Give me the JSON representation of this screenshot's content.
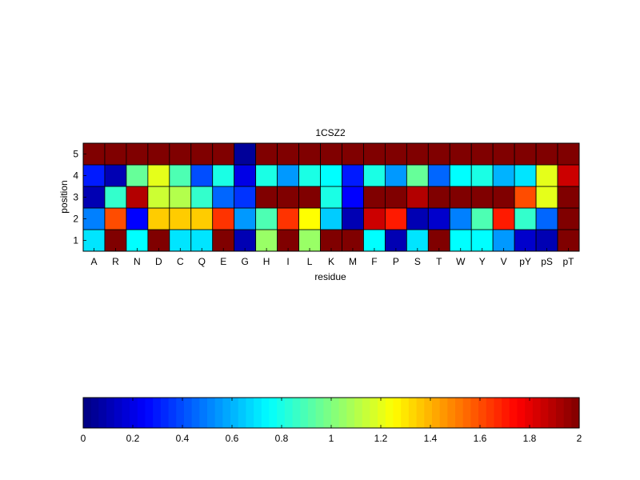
{
  "chart_data": {
    "type": "heatmap",
    "title": "1CSZ2",
    "xlabel": "residue",
    "ylabel": "position",
    "x_categories": [
      "A",
      "R",
      "N",
      "D",
      "C",
      "Q",
      "E",
      "G",
      "H",
      "I",
      "L",
      "K",
      "M",
      "F",
      "P",
      "S",
      "T",
      "W",
      "Y",
      "V",
      "pY",
      "pS",
      "pT"
    ],
    "y_categories": [
      "1",
      "2",
      "3",
      "4",
      "5"
    ],
    "values": [
      [
        0.7,
        2.0,
        0.75,
        2.0,
        0.7,
        0.7,
        2.0,
        0.1,
        1.05,
        2.0,
        1.05,
        2.0,
        2.0,
        0.75,
        0.1,
        0.7,
        2.0,
        0.75,
        0.75,
        0.55,
        0.15,
        0.1,
        2.0
      ],
      [
        0.5,
        1.6,
        0.25,
        1.35,
        1.35,
        1.35,
        1.65,
        0.55,
        0.9,
        1.65,
        1.25,
        0.65,
        0.1,
        1.85,
        1.7,
        0.1,
        0.15,
        0.5,
        0.9,
        1.7,
        0.85,
        0.45,
        2.0
      ],
      [
        0.1,
        0.85,
        1.9,
        1.15,
        1.1,
        0.85,
        0.45,
        0.35,
        2.0,
        2.0,
        2.0,
        0.8,
        0.25,
        2.0,
        2.0,
        1.9,
        2.0,
        2.0,
        2.0,
        2.0,
        1.6,
        1.2,
        2.0
      ],
      [
        0.3,
        0.1,
        0.95,
        1.2,
        0.9,
        0.4,
        0.8,
        0.2,
        0.8,
        0.55,
        0.8,
        0.75,
        0.3,
        0.8,
        0.55,
        0.95,
        0.45,
        0.75,
        0.8,
        0.6,
        0.7,
        1.2,
        1.85
      ],
      [
        2.0,
        2.0,
        2.0,
        2.0,
        2.0,
        2.0,
        2.0,
        0.05,
        2.0,
        2.0,
        2.0,
        2.0,
        2.0,
        2.0,
        2.0,
        2.0,
        2.0,
        2.0,
        2.0,
        2.0,
        2.0,
        2.0,
        2.0
      ]
    ],
    "colormap": "jet",
    "color_range": [
      0,
      2
    ],
    "colorbar": {
      "placement": "bottom",
      "ticks": [
        "0",
        "0.2",
        "0.4",
        "0.6",
        "0.8",
        "1",
        "1.2",
        "1.4",
        "1.6",
        "1.8",
        "2"
      ]
    }
  }
}
